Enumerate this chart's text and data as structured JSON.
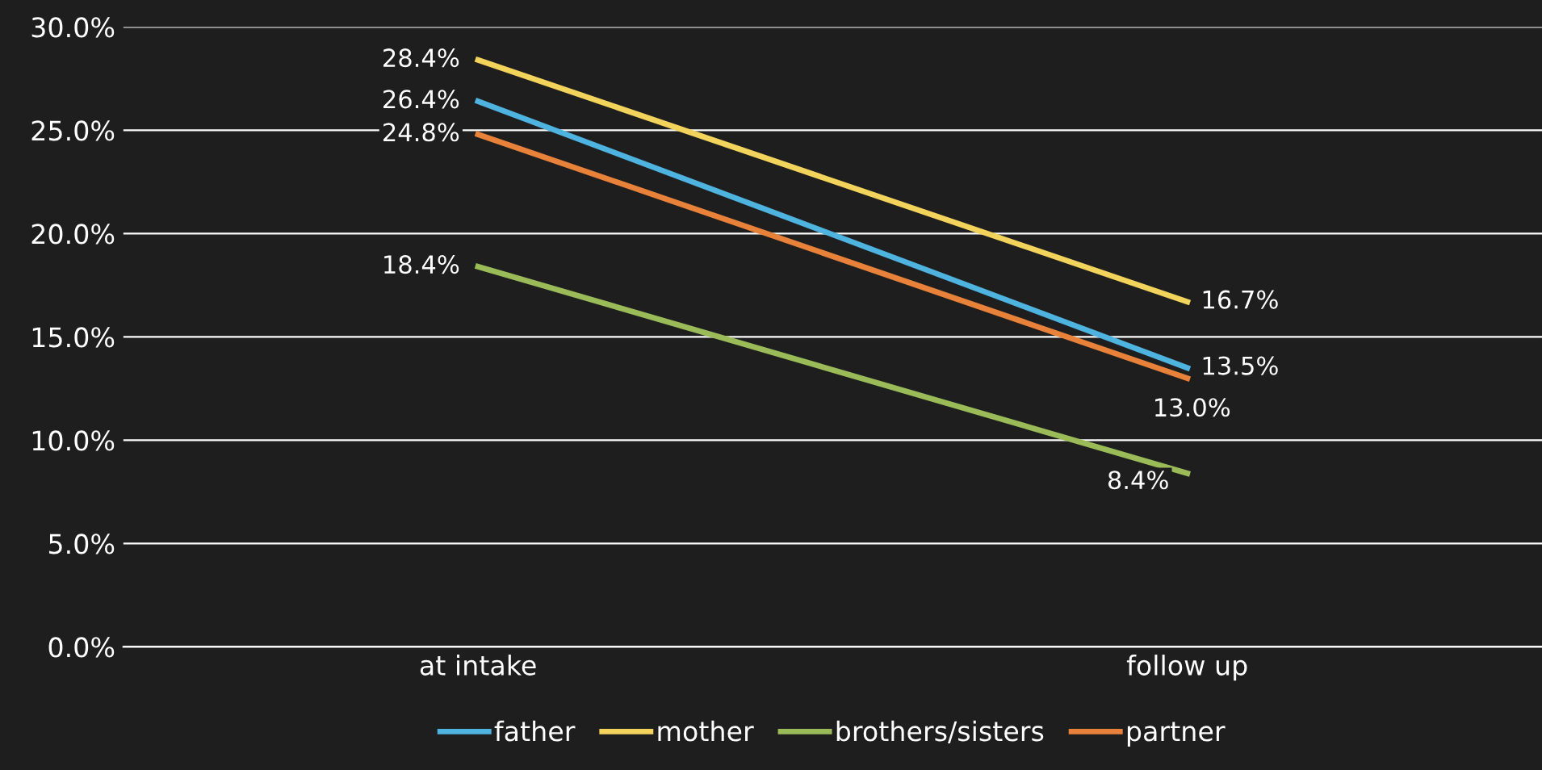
{
  "chart_data": {
    "type": "line",
    "categories": [
      "at intake",
      "follow up"
    ],
    "series": [
      {
        "name": "father",
        "color": "#4fb3e0",
        "values": [
          26.4,
          13.5
        ],
        "value_labels": [
          "26.4%",
          "13.5%"
        ]
      },
      {
        "name": "mother",
        "color": "#f2d35b",
        "values": [
          28.4,
          16.7
        ],
        "value_labels": [
          "28.4%",
          "16.7%"
        ]
      },
      {
        "name": "brothers/sisters",
        "color": "#9bbb59",
        "values": [
          18.4,
          8.4
        ],
        "value_labels": [
          "18.4%",
          "8.4%"
        ]
      },
      {
        "name": "partner",
        "color": "#e8823a",
        "values": [
          24.8,
          13.0
        ],
        "value_labels": [
          "24.8%",
          "13.0%"
        ]
      }
    ],
    "ylim": [
      0,
      30
    ],
    "yticks": [
      {
        "value": 0,
        "label": "0.0%"
      },
      {
        "value": 5,
        "label": "5.0%"
      },
      {
        "value": 10,
        "label": "10.0%"
      },
      {
        "value": 15,
        "label": "15.0%"
      },
      {
        "value": 20,
        "label": "20.0%"
      },
      {
        "value": 25,
        "label": "25.0%"
      },
      {
        "value": 30,
        "label": "30.0%"
      }
    ],
    "grid": "y",
    "legend": "bottom",
    "marker": "none",
    "line_style": "solid"
  }
}
